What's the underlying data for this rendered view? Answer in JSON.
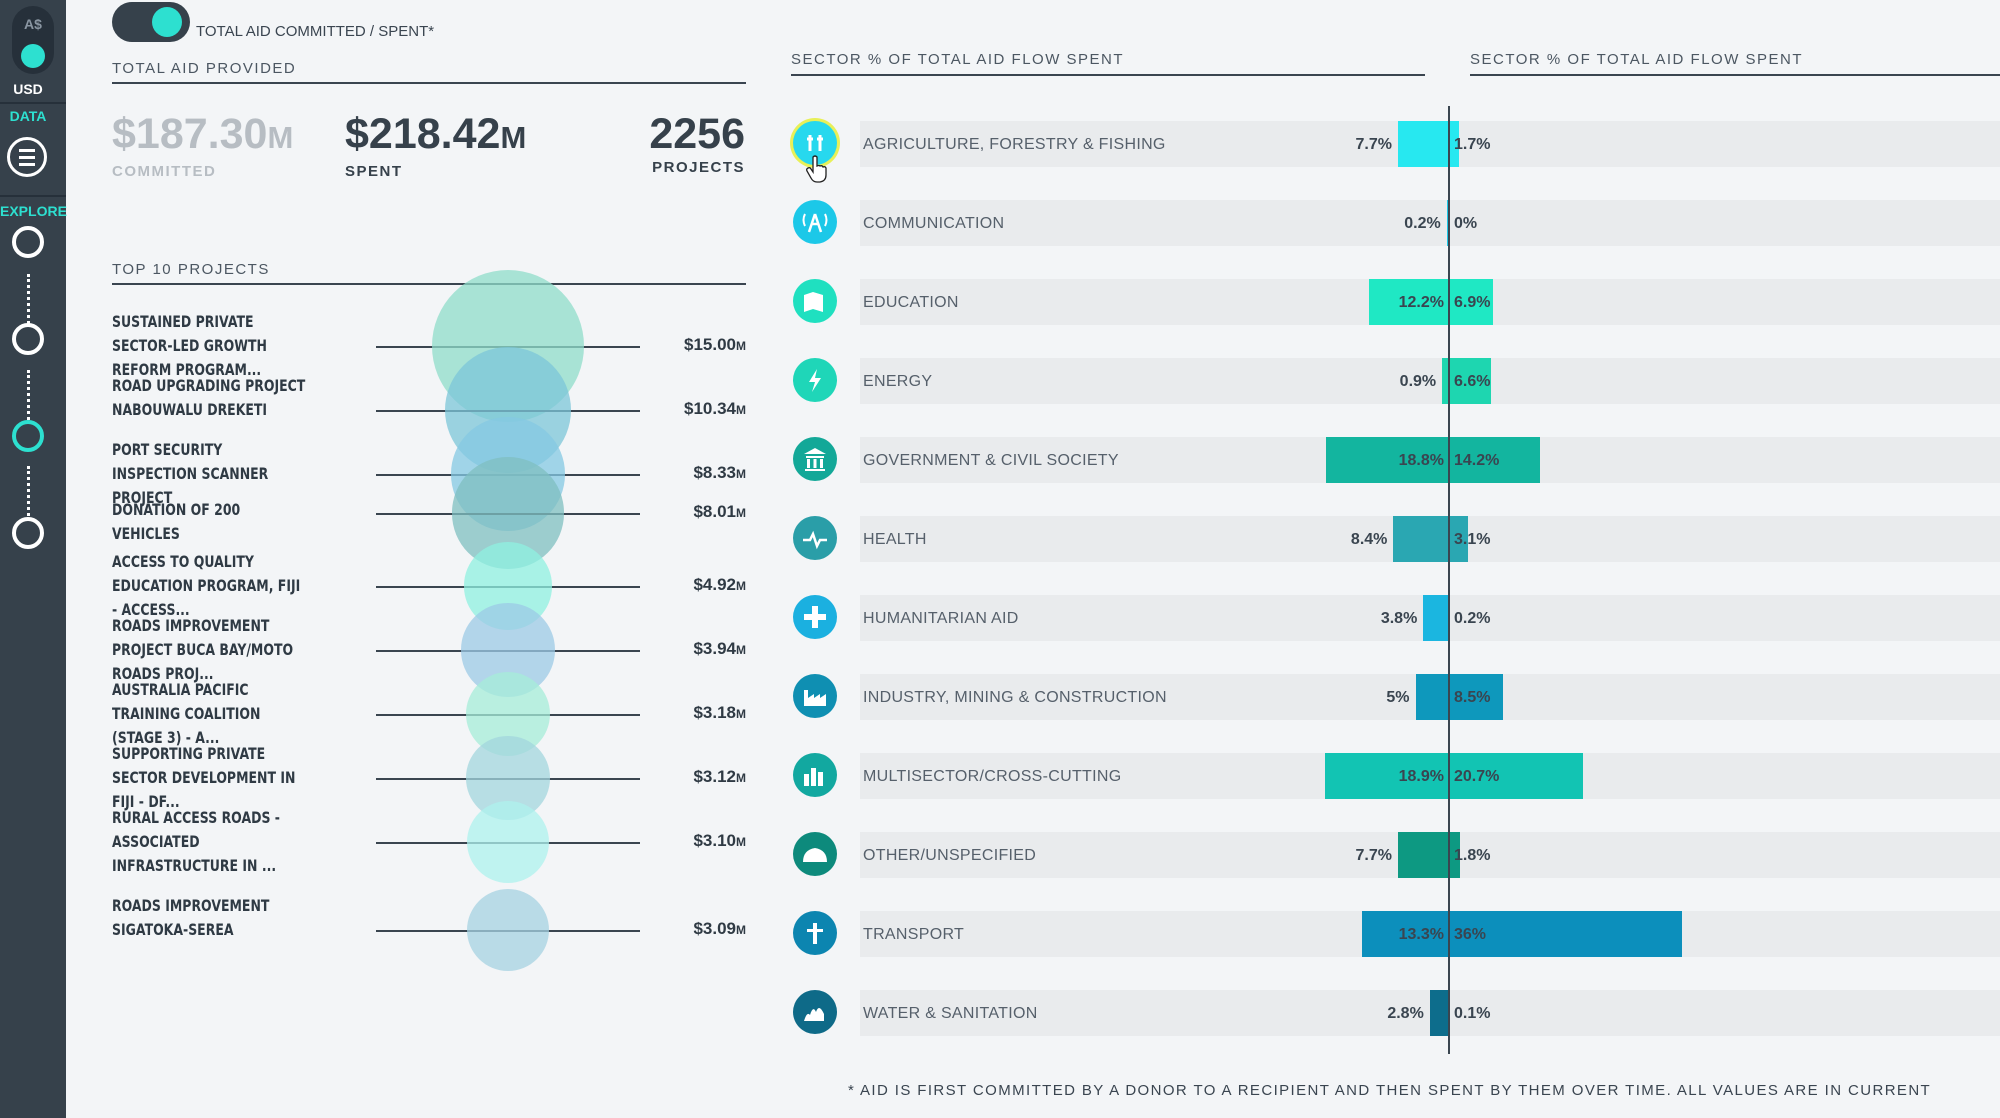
{
  "sidebar": {
    "currency_aud": "A$",
    "currency_usd": "USD",
    "data_label": "DATA",
    "explore_label": "EXPLORE"
  },
  "toggle": {
    "label": "TOTAL AID COMMITTED / SPENT*"
  },
  "total_aid": {
    "title": "TOTAL AID PROVIDED",
    "committed_value": "$187.30",
    "committed_unit": "M",
    "committed_label": "COMMITTED",
    "spent_value": "$218.42",
    "spent_unit": "M",
    "spent_label": "SPENT",
    "projects_value": "2256",
    "projects_label": "PROJECTS"
  },
  "top_projects": {
    "title": "TOP 10 PROJECTS",
    "items": [
      {
        "name": "SUSTAINED PRIVATE SECTOR-LED GROWTH REFORM PROGRAM...",
        "value": "$15.00",
        "unit": "M",
        "amount": 15.0,
        "color": "#8fdcc9"
      },
      {
        "name": "ROAD UPGRADING PROJECT NABOUWALU DREKETI",
        "value": "$10.34",
        "unit": "M",
        "amount": 10.34,
        "color": "#7cc6d8"
      },
      {
        "name": "PORT SECURITY INSPECTION SCANNER PROJECT",
        "value": "$8.33",
        "unit": "M",
        "amount": 8.33,
        "color": "#84c8e3"
      },
      {
        "name": "DONATION OF 200 VEHICLES",
        "value": "$8.01",
        "unit": "M",
        "amount": 8.01,
        "color": "#7fbfc0"
      },
      {
        "name": "ACCESS TO QUALITY EDUCATION PROGRAM, FIJI - ACCESS...",
        "value": "$4.92",
        "unit": "M",
        "amount": 4.92,
        "color": "#8ff0e0"
      },
      {
        "name": "ROADS IMPROVEMENT PROJECT BUCA BAY/MOTO ROADS PROJ...",
        "value": "$3.94",
        "unit": "M",
        "amount": 3.94,
        "color": "#9cc9e6"
      },
      {
        "name": "AUSTRALIA PACIFIC TRAINING COALITION (STAGE 3) - A...",
        "value": "$3.18",
        "unit": "M",
        "amount": 3.18,
        "color": "#a6ecd8"
      },
      {
        "name": "SUPPORTING PRIVATE SECTOR DEVELOPMENT IN FIJI - DF...",
        "value": "$3.12",
        "unit": "M",
        "amount": 3.12,
        "color": "#a3d5dd"
      },
      {
        "name": "RURAL ACCESS ROADS - ASSOCIATED INFRASTRUCTURE IN ...",
        "value": "$3.10",
        "unit": "M",
        "amount": 3.1,
        "color": "#aef2ee"
      },
      {
        "name": "ROADS IMPROVEMENT SIGATOKA-SEREA",
        "value": "$3.09",
        "unit": "M",
        "amount": 3.09,
        "color": "#a6d2e2"
      }
    ]
  },
  "sectors": {
    "title_left": "SECTOR % OF TOTAL AID FLOW SPENT",
    "title_right": "SECTOR % OF TOTAL AID FLOW SPENT",
    "items": [
      {
        "name": "AGRICULTURE, FORESTRY & FISHING",
        "committed_label": "7.7%",
        "committed": 7.7,
        "spent_label": "1.7%",
        "spent": 1.7,
        "color": "#27e8f0",
        "icon": "agriculture-icon",
        "icon_color": "#27d8ee"
      },
      {
        "name": "COMMUNICATION",
        "committed_label": "0.2%",
        "committed": 0.2,
        "spent_label": "0%",
        "spent": 0,
        "color": "#1cc8e8",
        "icon": "communication-icon",
        "icon_color": "#1cc8e8"
      },
      {
        "name": "EDUCATION",
        "committed_label": "12.2%",
        "committed": 12.2,
        "spent_label": "6.9%",
        "spent": 6.9,
        "color": "#1fe8c4",
        "icon": "education-icon",
        "icon_color": "#1fe0c0"
      },
      {
        "name": "ENERGY",
        "committed_label": "0.9%",
        "committed": 0.9,
        "spent_label": "6.6%",
        "spent": 6.6,
        "color": "#1ed6b0",
        "icon": "energy-icon",
        "icon_color": "#1fd6b8"
      },
      {
        "name": "GOVERNMENT & CIVIL SOCIETY",
        "committed_label": "18.8%",
        "committed": 18.8,
        "spent_label": "14.2%",
        "spent": 14.2,
        "color": "#13b59f",
        "icon": "government-icon",
        "icon_color": "#13a898"
      },
      {
        "name": "HEALTH",
        "committed_label": "8.4%",
        "committed": 8.4,
        "spent_label": "3.1%",
        "spent": 3.1,
        "color": "#2aa7b2",
        "icon": "health-icon",
        "icon_color": "#2a9ea8"
      },
      {
        "name": "HUMANITARIAN AID",
        "committed_label": "3.8%",
        "committed": 3.8,
        "spent_label": "0.2%",
        "spent": 0.2,
        "color": "#1bb6e0",
        "icon": "humanitarian-icon",
        "icon_color": "#1bb0e0"
      },
      {
        "name": "INDUSTRY, MINING & CONSTRUCTION",
        "committed_label": "5%",
        "committed": 5,
        "spent_label": "8.5%",
        "spent": 8.5,
        "color": "#0e98bc",
        "icon": "industry-icon",
        "icon_color": "#0f8fb2"
      },
      {
        "name": "MULTISECTOR/CROSS-CUTTING",
        "committed_label": "18.9%",
        "committed": 18.9,
        "spent_label": "20.7%",
        "spent": 20.7,
        "color": "#12c4b3",
        "icon": "multisector-icon",
        "icon_color": "#12a8a0"
      },
      {
        "name": "OTHER/UNSPECIFIED",
        "committed_label": "7.7%",
        "committed": 7.7,
        "spent_label": "1.8%",
        "spent": 1.8,
        "color": "#0d9982",
        "icon": "other-icon",
        "icon_color": "#0d8a7c"
      },
      {
        "name": "TRANSPORT",
        "committed_label": "13.3%",
        "committed": 13.3,
        "spent_label": "36%",
        "spent": 36,
        "color": "#0c8fbc",
        "icon": "transport-icon",
        "icon_color": "#0c85b0"
      },
      {
        "name": "WATER & SANITATION",
        "committed_label": "2.8%",
        "committed": 2.8,
        "spent_label": "0.1%",
        "spent": 0.1,
        "color": "#0d6d8c",
        "icon": "water-icon",
        "icon_color": "#0e6a88"
      }
    ]
  },
  "footnote": "* AID IS FIRST COMMITTED BY A DONOR TO A RECIPIENT AND THEN SPENT BY THEM OVER TIME. ALL VALUES ARE IN CURRENT"
}
